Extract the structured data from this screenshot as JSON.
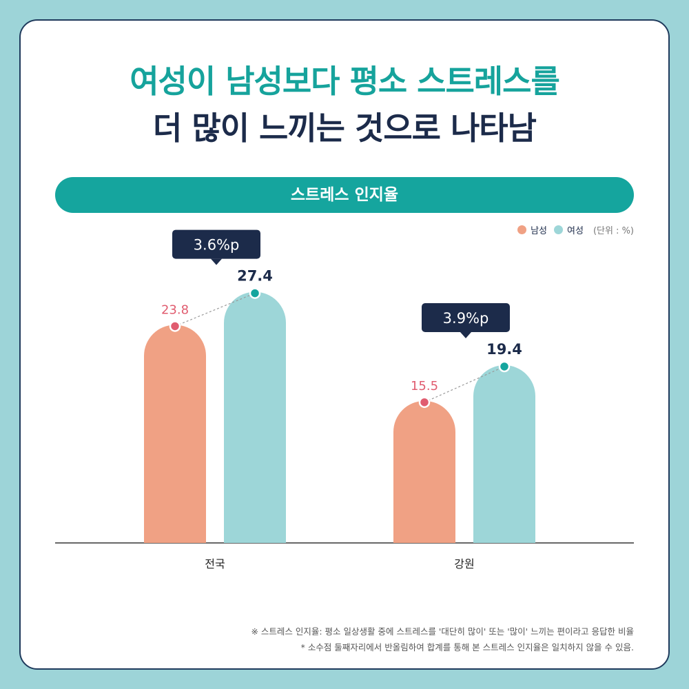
{
  "title_line1": "여성이 남성보다 평소 스트레스를",
  "title_line2": "더 많이 느끼는 것으로 나타남",
  "chart_data": {
    "type": "bar",
    "title": "스트레스 인지율",
    "categories": [
      "전국",
      "강원"
    ],
    "series": [
      {
        "name": "남성",
        "color": "#f0a184",
        "values": [
          23.8,
          15.5
        ]
      },
      {
        "name": "여성",
        "color": "#9dd6d8",
        "values": [
          27.4,
          19.4
        ]
      }
    ],
    "differences": [
      "3.6%p",
      "3.9%p"
    ],
    "unit": "(단위 : %)",
    "ylim": [
      0,
      30
    ]
  },
  "notes": [
    "※ 스트레스 인지율: 평소 일상생활 중에 스트레스를 '대단히 많이' 또는 '많이' 느끼는 편이라고 응답한 비율",
    "* 소수점 둘째자리에서 반올림하여 합계를 통해 본 스트레스 인지율은 일치하지 않을 수 있음."
  ]
}
